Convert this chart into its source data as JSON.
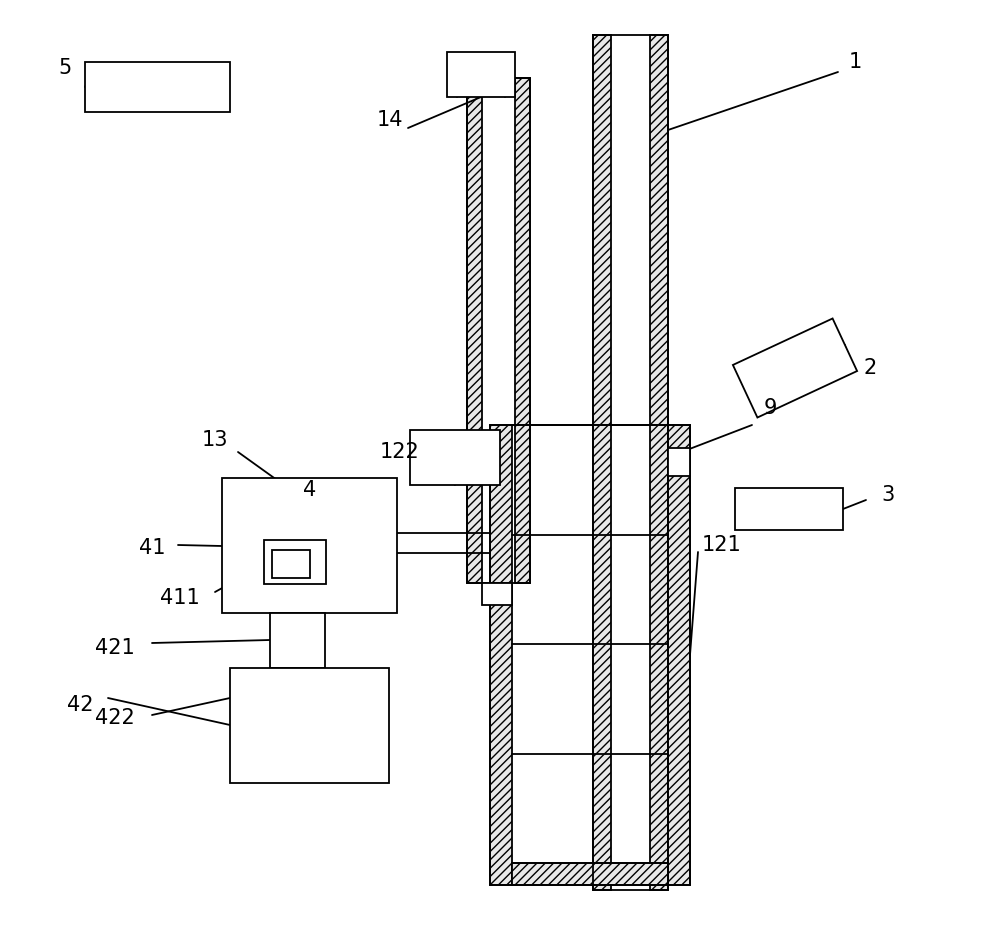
{
  "bg_color": "#ffffff",
  "figsize": [
    10.0,
    9.25
  ],
  "dpi": 100,
  "lw": 1.3
}
